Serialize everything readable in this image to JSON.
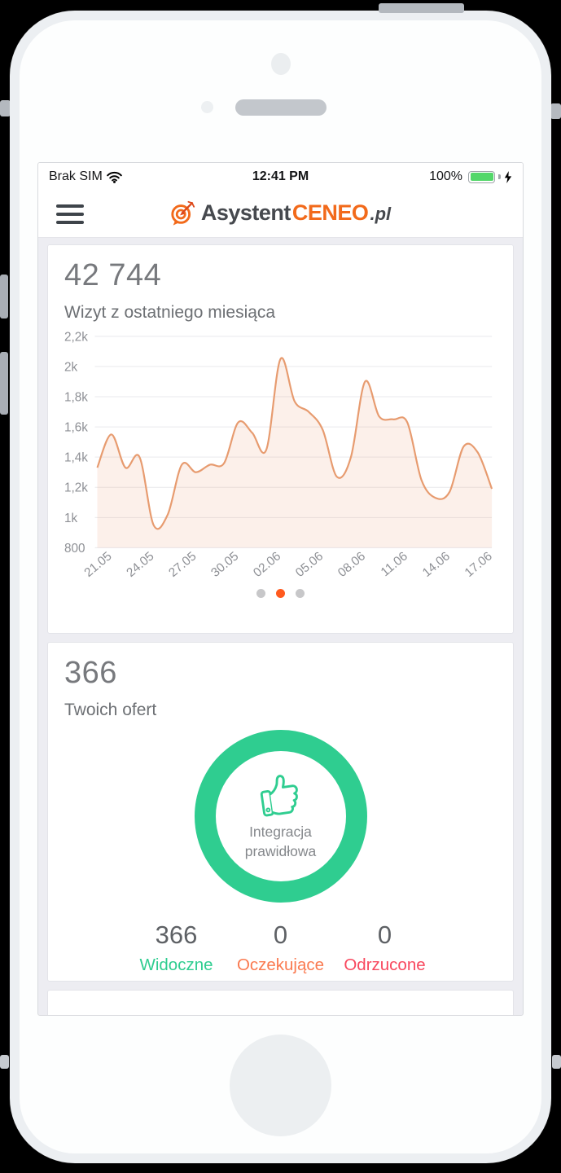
{
  "status_bar": {
    "carrier": "Brak SIM",
    "time": "12:41 PM",
    "battery": "100%"
  },
  "header": {
    "logo_prefix": "Asystent",
    "logo_brand": "CENEO",
    "logo_suffix": ".pl"
  },
  "visits_card": {
    "value": "42 744",
    "subtitle": "Wizyt z ostatniego miesiąca"
  },
  "chart_data": {
    "type": "area",
    "title": "Wizyt z ostatniego miesiąca",
    "x_tick_labels": [
      "21.05",
      "24.05",
      "27.05",
      "30.05",
      "02.06",
      "05.06",
      "08.06",
      "11.06",
      "14.06",
      "17.06"
    ],
    "y_tick_labels": [
      "2,2k",
      "2k",
      "1,8k",
      "1,6k",
      "1,4k",
      "1,2k",
      "1k",
      "800"
    ],
    "ylim": [
      800,
      2200
    ],
    "y_step": 200,
    "x_range": "21.05 - 18.06 (daily)",
    "values": [
      1330,
      1550,
      1330,
      1400,
      950,
      1020,
      1350,
      1300,
      1350,
      1360,
      1630,
      1560,
      1450,
      2050,
      1770,
      1700,
      1580,
      1270,
      1400,
      1900,
      1670,
      1650,
      1630,
      1250,
      1130,
      1170,
      1470,
      1430,
      1190
    ],
    "grid": "on",
    "legend": "none",
    "line_color": "#e79b6f",
    "fill_color": "rgba(233,150,107,0.14)"
  },
  "carousel": {
    "dots": 3,
    "active_index": 1,
    "active_color": "#ff5a1e",
    "inactive_color": "#c7c7c9"
  },
  "offers_card": {
    "value": "366",
    "subtitle": "Twoich ofert",
    "ring_color": "#2fcd90",
    "ring_label_line1": "Integracja",
    "ring_label_line2": "prawidłowa",
    "stats": [
      {
        "value": "366",
        "label": "Widoczne",
        "color": "#2fcd90"
      },
      {
        "value": "0",
        "label": "Oczekujące",
        "color": "#fa7a50"
      },
      {
        "value": "0",
        "label": "Odrzucone",
        "color": "#f8485e"
      }
    ]
  }
}
